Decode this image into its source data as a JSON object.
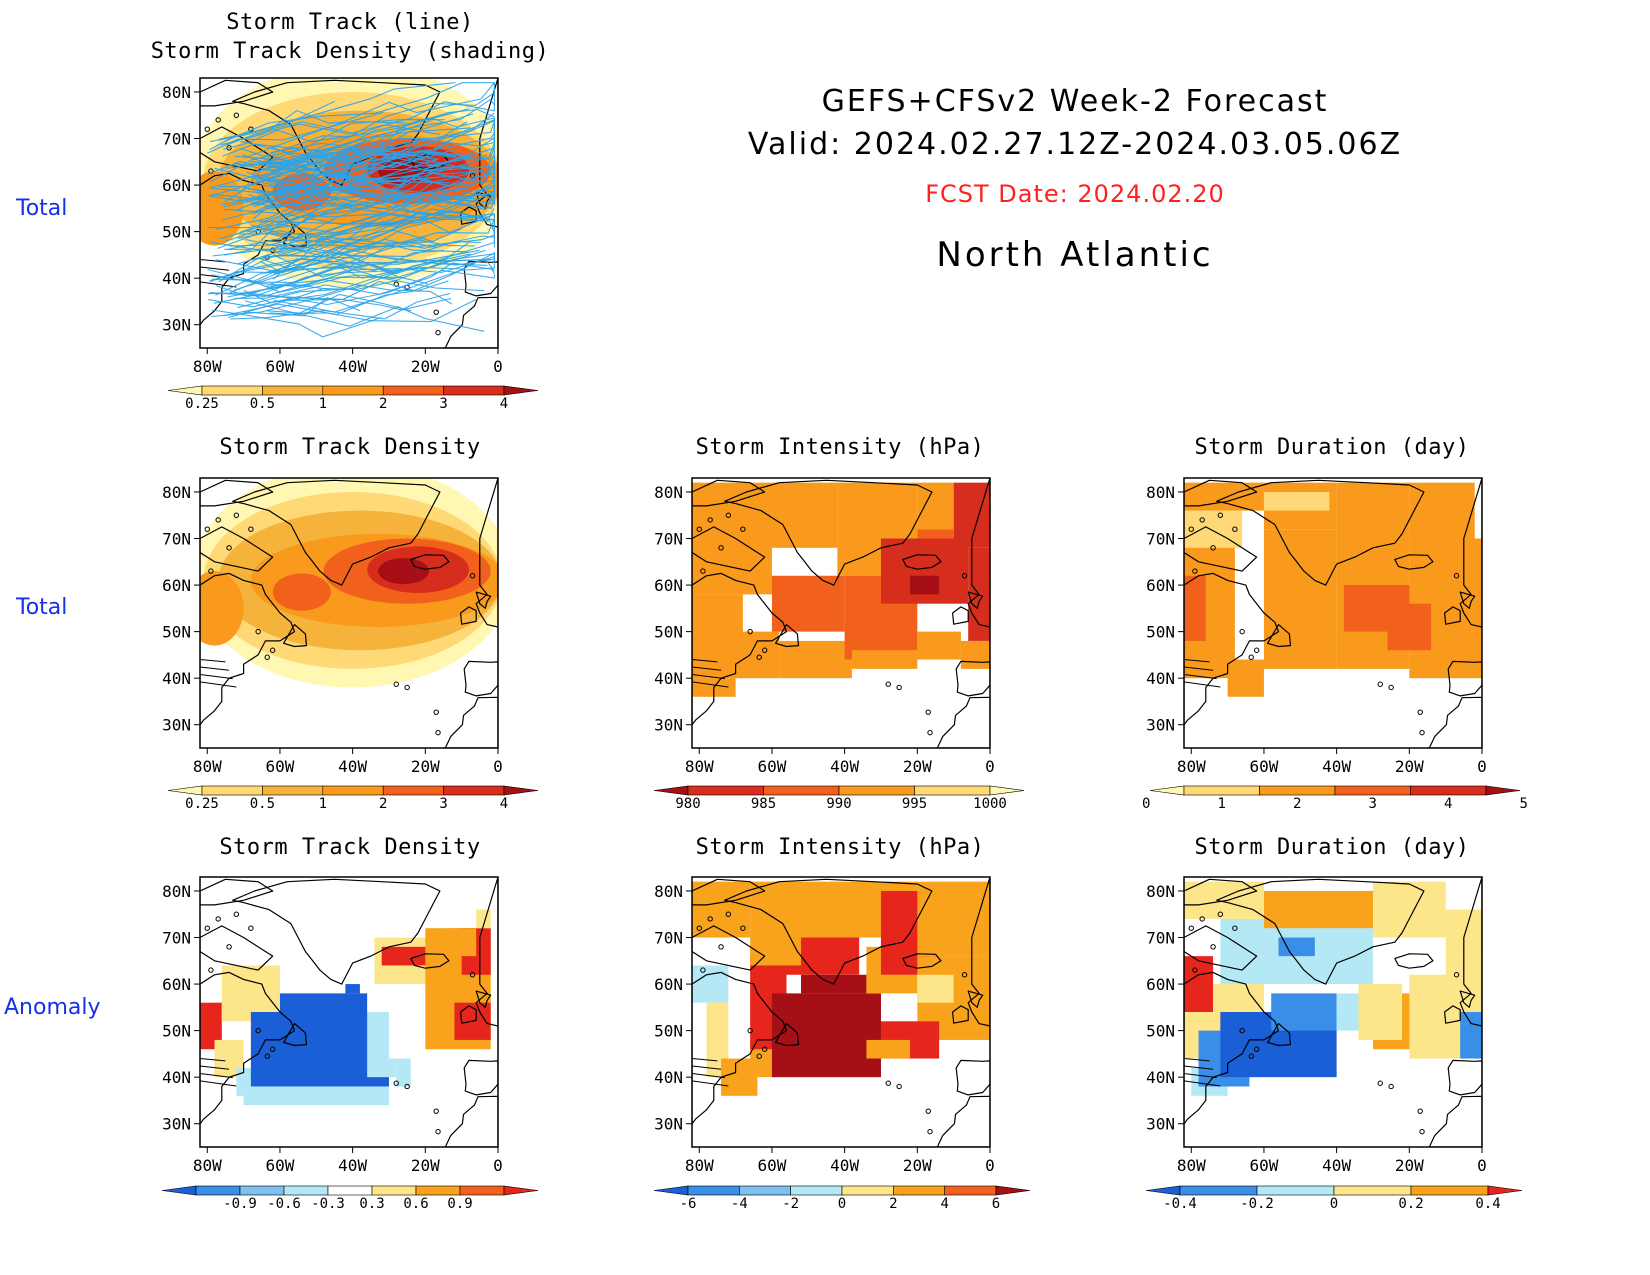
{
  "header": {
    "line1": "GEFS+CFSv2 Week-2 Forecast",
    "line2": "Valid: 2024.02.27.12Z-2024.03.05.06Z",
    "fcst": "FCST Date: 2024.02.20",
    "region": "North Atlantic",
    "fcst_color": "#ff2020"
  },
  "row_labels": [
    "Total",
    "Total",
    "Anomaly"
  ],
  "axes": {
    "lat_ticks": [
      "80N",
      "70N",
      "60N",
      "50N",
      "40N",
      "30N"
    ],
    "lon_ticks": [
      "80W",
      "60W",
      "40W",
      "20W",
      "0"
    ]
  },
  "chart_data": [
    {
      "type": "heatmap",
      "id": "p1",
      "title_lines": [
        "Storm Track (line)",
        "Storm Track Density (shading)"
      ],
      "overlay": "storm track lines",
      "xlim": [
        "80W",
        "0"
      ],
      "ylim": [
        "25N",
        "83N"
      ],
      "colorbar": {
        "labels": [
          "0.25",
          "0.5",
          "1",
          "2",
          "3",
          "4"
        ],
        "colors": [
          "#fff7b2",
          "#fed976",
          "#f5b33b",
          "#f99a1c",
          "#f2611c",
          "#d62d1c",
          "#a50f15"
        ]
      }
    },
    {
      "type": "heatmap",
      "id": "p2",
      "title_lines": [
        "Storm Track Density"
      ],
      "xlim": [
        "80W",
        "0"
      ],
      "ylim": [
        "25N",
        "83N"
      ],
      "colorbar": {
        "labels": [
          "0.25",
          "0.5",
          "1",
          "2",
          "3",
          "4"
        ],
        "colors": [
          "#fff7b2",
          "#fed976",
          "#f5b33b",
          "#f99a1c",
          "#f2611c",
          "#d62d1c",
          "#a50f15"
        ]
      }
    },
    {
      "type": "heatmap",
      "id": "p3",
      "title_lines": [
        "Storm Intensity (hPa)"
      ],
      "xlim": [
        "80W",
        "0"
      ],
      "ylim": [
        "25N",
        "83N"
      ],
      "colorbar": {
        "labels": [
          "980",
          "985",
          "990",
          "995",
          "1000"
        ],
        "colors": [
          "#a50f15",
          "#d62d1c",
          "#f2611c",
          "#f99a1c",
          "#fed976",
          "#fff7b2"
        ]
      }
    },
    {
      "type": "heatmap",
      "id": "p4",
      "title_lines": [
        "Storm Duration (day)"
      ],
      "xlim": [
        "80W",
        "0"
      ],
      "ylim": [
        "25N",
        "83N"
      ],
      "colorbar": {
        "labels": [
          "0",
          "1",
          "2",
          "3",
          "4",
          "5"
        ],
        "colors": [
          "#fff7b2",
          "#fed976",
          "#f99a1c",
          "#f2611c",
          "#d62d1c",
          "#a50f15"
        ]
      }
    },
    {
      "type": "heatmap",
      "id": "p5",
      "title_lines": [
        "Storm Track Density"
      ],
      "xlim": [
        "80W",
        "0"
      ],
      "ylim": [
        "25N",
        "83N"
      ],
      "colorbar": {
        "labels": [
          "-0.9",
          "-0.6",
          "-0.3",
          "0.3",
          "0.6",
          "0.9"
        ],
        "colors": [
          "#1a5fd6",
          "#3a8ee8",
          "#7ec0f0",
          "#b5e8f5",
          "#ffffff",
          "#fde68a",
          "#f9a21b",
          "#f2611c",
          "#e6261c"
        ]
      }
    },
    {
      "type": "heatmap",
      "id": "p6",
      "title_lines": [
        "Storm Intensity (hPa)"
      ],
      "xlim": [
        "80W",
        "0"
      ],
      "ylim": [
        "25N",
        "83N"
      ],
      "colorbar": {
        "labels": [
          "-6",
          "-4",
          "-2",
          "0",
          "2",
          "4",
          "6"
        ],
        "colors": [
          "#1a5fd6",
          "#3a8ee8",
          "#7ec0f0",
          "#b5e8f5",
          "#fde68a",
          "#f9a21b",
          "#f2611c",
          "#a50f15"
        ]
      }
    },
    {
      "type": "heatmap",
      "id": "p7",
      "title_lines": [
        "Storm Duration (day)"
      ],
      "xlim": [
        "80W",
        "0"
      ],
      "ylim": [
        "25N",
        "83N"
      ],
      "colorbar": {
        "labels": [
          "-0.4",
          "-0.2",
          "0",
          "0.2",
          "0.4"
        ],
        "colors": [
          "#1a5fd6",
          "#3a8ee8",
          "#b5e8f5",
          "#fde68a",
          "#f9a21b",
          "#e6261c"
        ]
      }
    }
  ]
}
